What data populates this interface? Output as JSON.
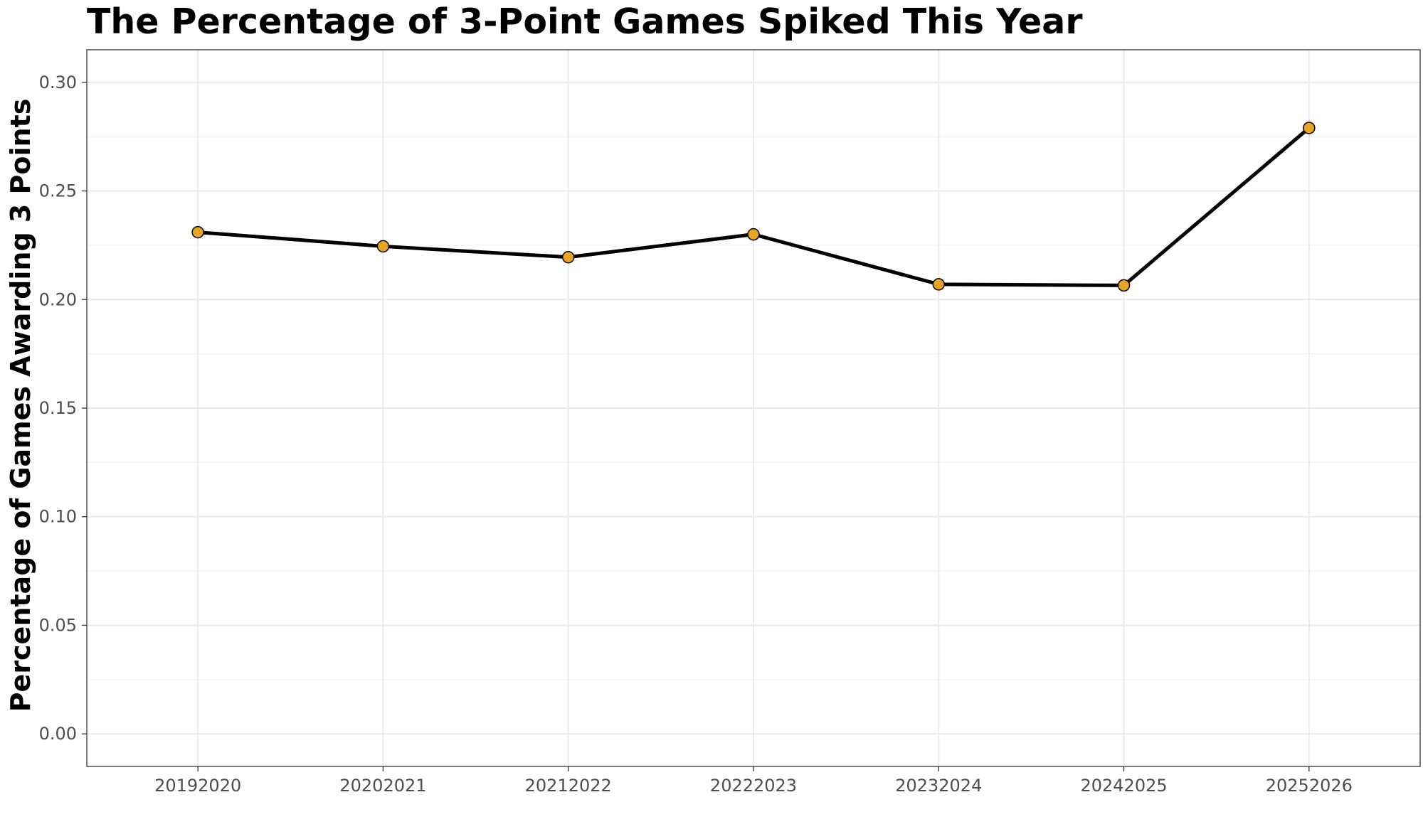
{
  "chart_data": {
    "type": "line",
    "title": "The Percentage of 3-Point Games Spiked This Year",
    "xlabel": "",
    "ylabel": "Percentage of Games Awarding 3 Points",
    "categories": [
      "20192020",
      "20202021",
      "20212022",
      "20222023",
      "20232024",
      "20242025",
      "20252026"
    ],
    "series": [
      {
        "values": [
          0.231,
          0.2245,
          0.2195,
          0.23,
          0.207,
          0.2065,
          0.279
        ]
      }
    ],
    "ylim": [
      -0.015,
      0.315
    ],
    "yticks": [
      0.0,
      0.05,
      0.1,
      0.15,
      0.2,
      0.25,
      0.3
    ],
    "ytick_labels": [
      "0.00",
      "0.05",
      "0.10",
      "0.15",
      "0.20",
      "0.25",
      "0.30"
    ],
    "grid": true,
    "line_color": "#000000",
    "point_fill": "#E6A526",
    "point_stroke": "#000000"
  }
}
